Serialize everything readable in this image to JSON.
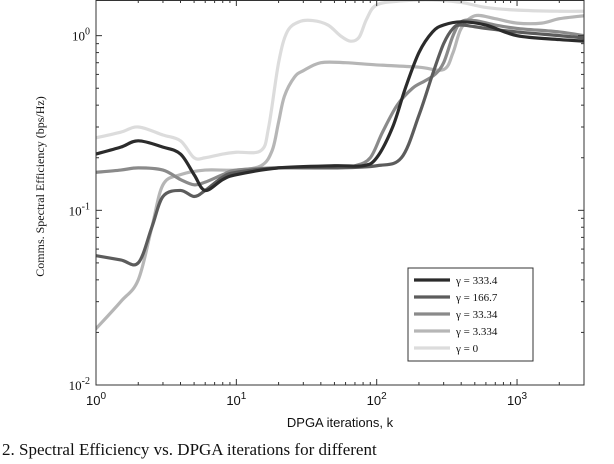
{
  "chart_data": {
    "type": "line",
    "title": "",
    "xlabel": "DPGA iterations, k",
    "ylabel": "Comms. Spectral Efficiency (bps/Hz)",
    "xscale": "log",
    "yscale": "log",
    "xlim": [
      1,
      3000
    ],
    "ylim": [
      0.01,
      1.6
    ],
    "grid": false,
    "legend_position": "bottom-right",
    "x_ticks": [
      {
        "value": 1,
        "base": "10",
        "exp": "0"
      },
      {
        "value": 10,
        "base": "10",
        "exp": "1"
      },
      {
        "value": 100,
        "base": "10",
        "exp": "2"
      },
      {
        "value": 1000,
        "base": "10",
        "exp": "3"
      }
    ],
    "y_ticks": [
      {
        "value": 0.01,
        "base": "10",
        "exp": "-2"
      },
      {
        "value": 0.1,
        "base": "10",
        "exp": "-1"
      },
      {
        "value": 1,
        "base": "10",
        "exp": "0"
      }
    ],
    "series": [
      {
        "name": "γ = 333.4",
        "color": "#2b2b2b",
        "points": [
          [
            1,
            0.21
          ],
          [
            1.5,
            0.23
          ],
          [
            2,
            0.25
          ],
          [
            3,
            0.23
          ],
          [
            4,
            0.21
          ],
          [
            5,
            0.16
          ],
          [
            6,
            0.13
          ],
          [
            8,
            0.15
          ],
          [
            10,
            0.16
          ],
          [
            20,
            0.175
          ],
          [
            50,
            0.18
          ],
          [
            80,
            0.18
          ],
          [
            100,
            0.2
          ],
          [
            130,
            0.3
          ],
          [
            160,
            0.5
          ],
          [
            200,
            0.8
          ],
          [
            250,
            1.05
          ],
          [
            300,
            1.15
          ],
          [
            400,
            1.2
          ],
          [
            600,
            1.15
          ],
          [
            1000,
            1.0
          ],
          [
            2000,
            0.95
          ],
          [
            3000,
            0.93
          ]
        ]
      },
      {
        "name": "γ = 166.7",
        "color": "#5c5c5c",
        "points": [
          [
            1,
            0.055
          ],
          [
            1.5,
            0.052
          ],
          [
            2,
            0.05
          ],
          [
            2.5,
            0.08
          ],
          [
            3,
            0.12
          ],
          [
            4,
            0.13
          ],
          [
            5,
            0.12
          ],
          [
            6,
            0.13
          ],
          [
            8,
            0.155
          ],
          [
            10,
            0.165
          ],
          [
            20,
            0.175
          ],
          [
            50,
            0.175
          ],
          [
            100,
            0.18
          ],
          [
            150,
            0.2
          ],
          [
            200,
            0.35
          ],
          [
            250,
            0.6
          ],
          [
            300,
            0.9
          ],
          [
            350,
            1.1
          ],
          [
            400,
            1.15
          ],
          [
            600,
            1.1
          ],
          [
            1000,
            1.05
          ],
          [
            2000,
            1.0
          ],
          [
            3000,
            0.97
          ]
        ]
      },
      {
        "name": "γ = 33.34",
        "color": "#8a8a8a",
        "points": [
          [
            1,
            0.165
          ],
          [
            1.5,
            0.17
          ],
          [
            2,
            0.175
          ],
          [
            3,
            0.17
          ],
          [
            4,
            0.15
          ],
          [
            5,
            0.14
          ],
          [
            6,
            0.145
          ],
          [
            8,
            0.16
          ],
          [
            10,
            0.17
          ],
          [
            20,
            0.175
          ],
          [
            50,
            0.175
          ],
          [
            70,
            0.18
          ],
          [
            90,
            0.2
          ],
          [
            110,
            0.28
          ],
          [
            140,
            0.4
          ],
          [
            180,
            0.5
          ],
          [
            220,
            0.55
          ],
          [
            260,
            0.6
          ],
          [
            300,
            0.7
          ],
          [
            350,
            1.0
          ],
          [
            400,
            1.2
          ],
          [
            500,
            1.22
          ],
          [
            700,
            1.15
          ],
          [
            1000,
            1.1
          ],
          [
            2000,
            1.05
          ],
          [
            3000,
            1.0
          ]
        ]
      },
      {
        "name": "γ = 3.334",
        "color": "#b6b6b6",
        "points": [
          [
            1,
            0.021
          ],
          [
            1.5,
            0.03
          ],
          [
            2,
            0.04
          ],
          [
            2.5,
            0.08
          ],
          [
            3,
            0.14
          ],
          [
            4,
            0.16
          ],
          [
            6,
            0.17
          ],
          [
            10,
            0.17
          ],
          [
            15,
            0.18
          ],
          [
            18,
            0.22
          ],
          [
            20,
            0.32
          ],
          [
            22,
            0.45
          ],
          [
            26,
            0.58
          ],
          [
            30,
            0.63
          ],
          [
            40,
            0.7
          ],
          [
            60,
            0.7
          ],
          [
            100,
            0.68
          ],
          [
            200,
            0.66
          ],
          [
            300,
            0.64
          ],
          [
            350,
            0.8
          ],
          [
            400,
            1.1
          ],
          [
            500,
            1.3
          ],
          [
            700,
            1.25
          ],
          [
            1000,
            1.18
          ],
          [
            1500,
            1.18
          ],
          [
            2000,
            1.25
          ],
          [
            3000,
            1.3
          ]
        ]
      },
      {
        "name": "γ = 0",
        "color": "#dcdcdc",
        "points": [
          [
            1,
            0.26
          ],
          [
            1.5,
            0.28
          ],
          [
            2,
            0.3
          ],
          [
            3,
            0.27
          ],
          [
            4,
            0.25
          ],
          [
            5,
            0.2
          ],
          [
            6,
            0.2
          ],
          [
            8,
            0.21
          ],
          [
            10,
            0.215
          ],
          [
            15,
            0.22
          ],
          [
            17,
            0.3
          ],
          [
            20,
            0.7
          ],
          [
            23,
            1.05
          ],
          [
            28,
            1.2
          ],
          [
            35,
            1.22
          ],
          [
            45,
            1.15
          ],
          [
            55,
            1.0
          ],
          [
            65,
            0.93
          ],
          [
            75,
            0.98
          ],
          [
            85,
            1.25
          ],
          [
            100,
            1.5
          ],
          [
            150,
            1.58
          ],
          [
            250,
            1.6
          ],
          [
            400,
            1.55
          ],
          [
            600,
            1.45
          ],
          [
            1000,
            1.4
          ],
          [
            2000,
            1.38
          ],
          [
            3000,
            1.38
          ]
        ]
      }
    ]
  },
  "caption": "2.  Spectral Efficiency vs. DPGA iterations for different"
}
